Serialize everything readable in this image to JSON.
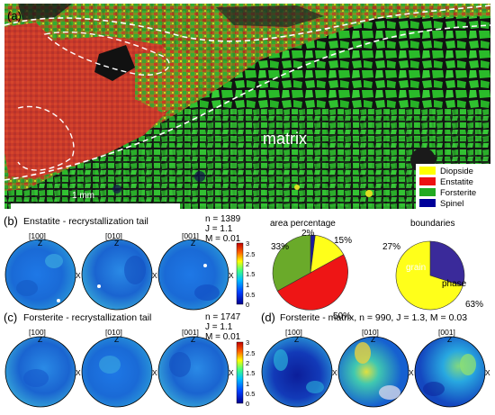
{
  "panel_a": {
    "label": "(a)",
    "matrix_label": "matrix",
    "scale_label": "1 mm",
    "legend": [
      {
        "name": "Diopside",
        "color": "#ffff00"
      },
      {
        "name": "Enstatite",
        "color": "#ee1111"
      },
      {
        "name": "Forsterite",
        "color": "#22aa22"
      },
      {
        "name": "Spinel",
        "color": "#000099"
      }
    ]
  },
  "panel_b": {
    "label": "(b)",
    "title": "Enstatite - recrystallization tail",
    "stats": [
      "n = 1389",
      "J = 1.1",
      "M = 0.01"
    ],
    "poles": [
      "[100]",
      "[010]",
      "[001]"
    ],
    "axis_z": "Z",
    "axis_x": "X",
    "colorbar_ticks": [
      "3",
      "2.5",
      "2",
      "1.5",
      "1",
      "0.5",
      "0"
    ]
  },
  "panel_c": {
    "label": "(c)",
    "title": "Forsterite - recrystallization tail",
    "stats": [
      "n = 1747",
      "J = 1.1",
      "M = 0.01"
    ],
    "poles": [
      "[100]",
      "[010]",
      "[001]"
    ],
    "colorbar_ticks": [
      "3",
      "2.5",
      "2",
      "1.5",
      "1",
      "0.5",
      "0"
    ]
  },
  "panel_d": {
    "label": "(d)",
    "title": "Forsterite - matrix, n = 990, J = 1.3, M = 0.03",
    "poles": [
      "[100]",
      "[010]",
      "[001]"
    ]
  },
  "pie_area": {
    "title": "area percentage",
    "labels": [
      "2%",
      "15%",
      "50%",
      "33%"
    ]
  },
  "pie_boundaries": {
    "title": "boundaries",
    "labels": [
      "27%",
      "63%"
    ],
    "grain_label": "grain",
    "phase_label": "phase"
  },
  "chart_data": [
    {
      "type": "pie",
      "title": "area percentage",
      "categories": [
        "Spinel",
        "Diopside",
        "Enstatite",
        "Forsterite"
      ],
      "values": [
        2,
        15,
        50,
        33
      ],
      "colors": [
        "#1a1aa0",
        "#ffff1a",
        "#ee1515",
        "#6aaa2a"
      ]
    },
    {
      "type": "pie",
      "title": "boundaries",
      "categories": [
        "grain",
        "phase"
      ],
      "values": [
        27,
        63
      ],
      "colors": [
        "#3a2a9a",
        "#ffff1a"
      ]
    }
  ]
}
